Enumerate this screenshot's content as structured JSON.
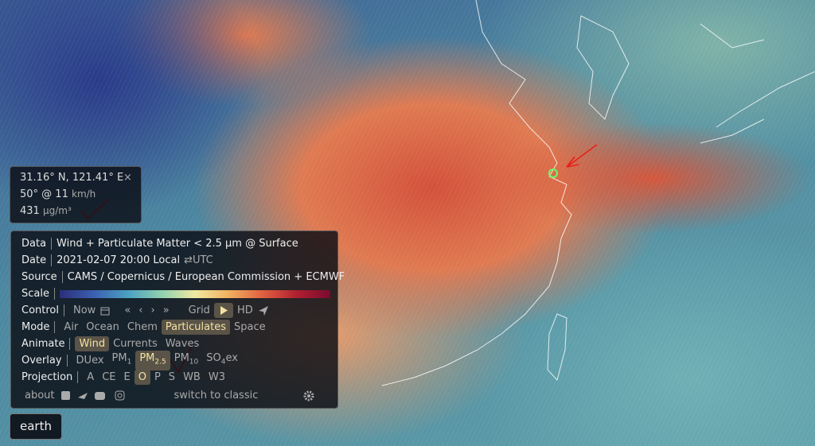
{
  "info": {
    "close": "×",
    "coords": "31.16° N, 121.41° E",
    "wind": "50° @ 11",
    "wind_unit": "km/h",
    "value": "431",
    "value_unit": "μg/m³"
  },
  "menu": {
    "data": {
      "label": "Data",
      "text": "Wind + Particulate Matter < 2.5 µm @ Surface"
    },
    "date": {
      "label": "Date",
      "text": "2021-02-07 20:00 Local",
      "toggle": "⇄UTC"
    },
    "source": {
      "label": "Source",
      "text": "CAMS / Copernicus / European Commission + ECMWF"
    },
    "scale": {
      "label": "Scale"
    },
    "control": {
      "label": "Control",
      "now": "Now",
      "first": "«",
      "prev": "‹",
      "next": "›",
      "last": "»",
      "grid": "Grid",
      "hd": "HD"
    },
    "mode": {
      "label": "Mode",
      "items": [
        "Air",
        "Ocean",
        "Chem",
        "Particulates",
        "Space"
      ]
    },
    "animate": {
      "label": "Animate",
      "items": [
        "Wind",
        "Currents",
        "Waves"
      ]
    },
    "overlay": {
      "label": "Overlay",
      "items": [
        {
          "main": "DUex"
        },
        {
          "main": "PM",
          "sub": "1"
        },
        {
          "main": "PM",
          "sub": "2.5"
        },
        {
          "main": "PM",
          "sub": "10"
        },
        {
          "main": "SO",
          "sub": "4",
          "tail": "ex"
        }
      ]
    },
    "projection": {
      "label": "Projection",
      "items": [
        "A",
        "CE",
        "E",
        "O",
        "P",
        "S",
        "WB",
        "W3"
      ]
    },
    "footer": {
      "about": "about",
      "classic": "switch to classic"
    }
  },
  "earth_button": "earth"
}
